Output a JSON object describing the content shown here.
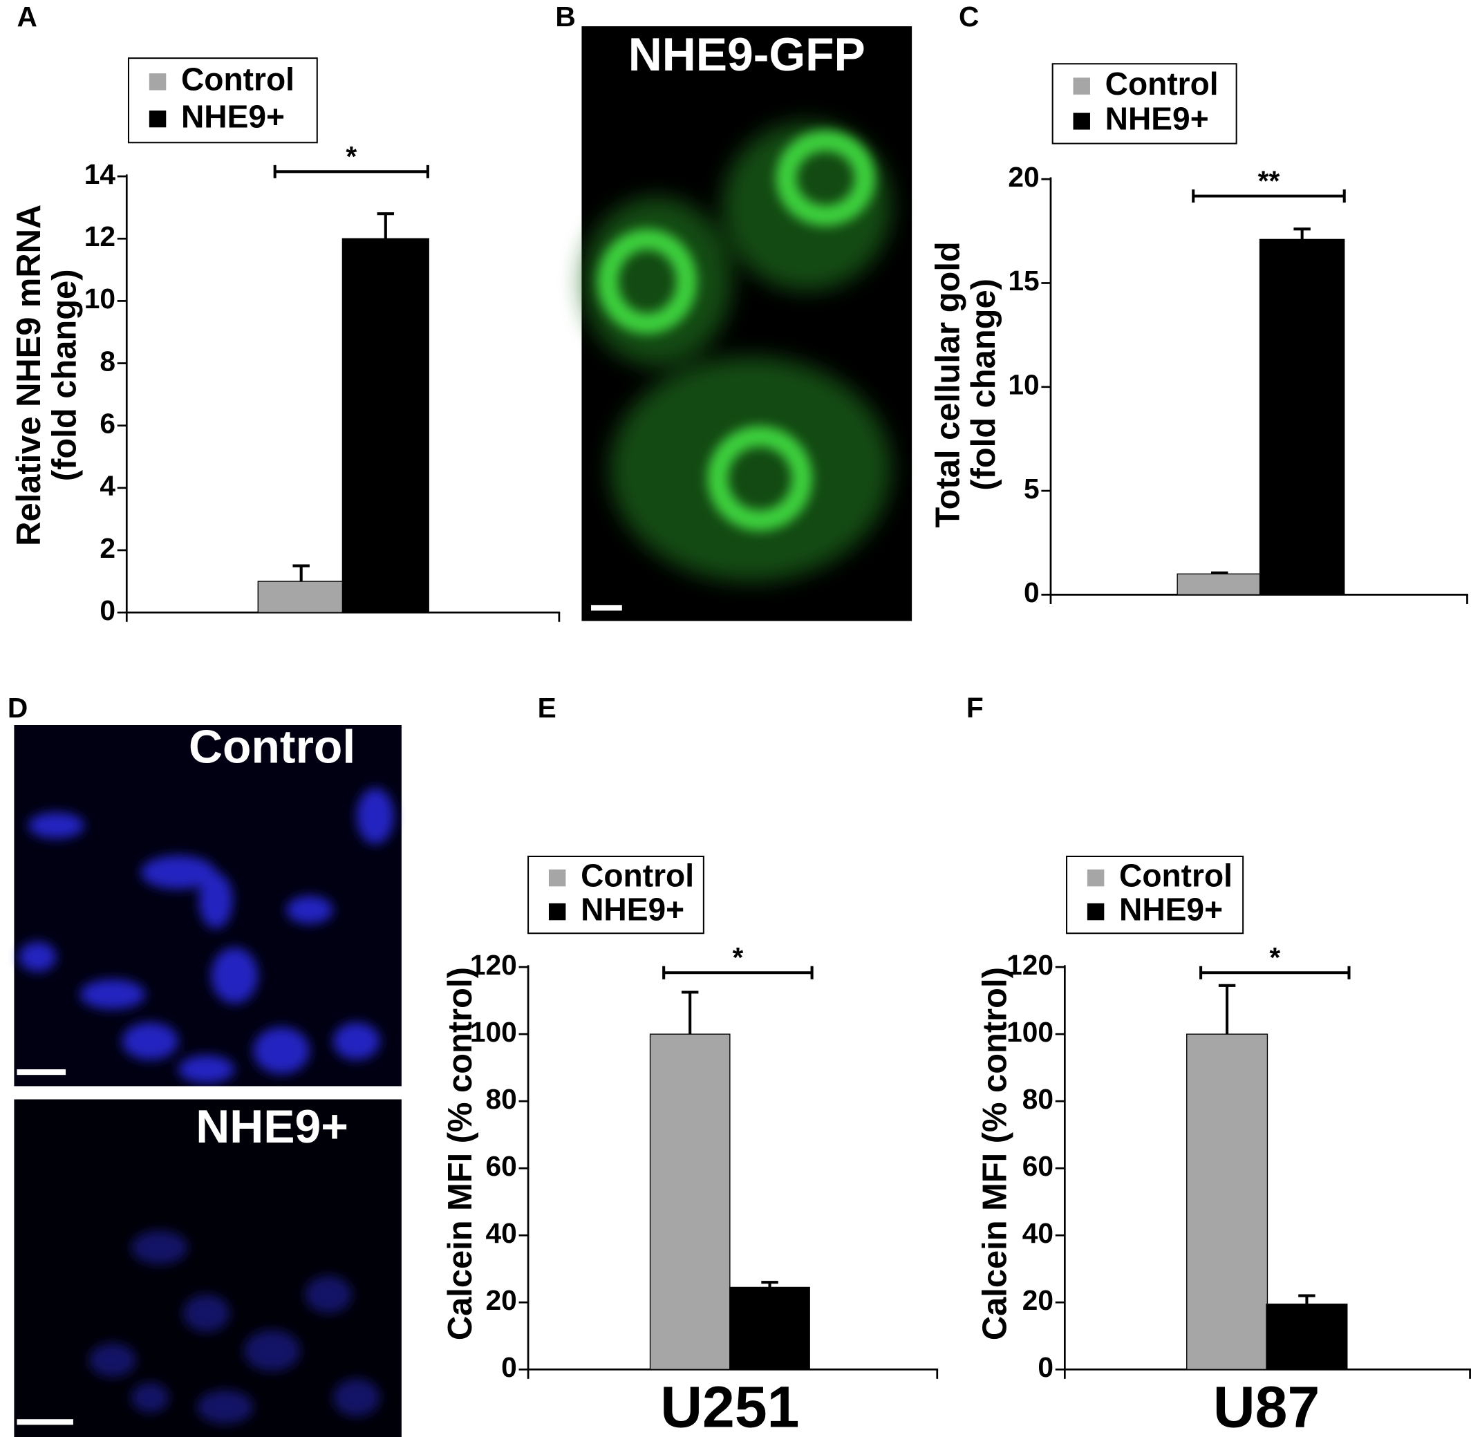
{
  "panel_labels": [
    "A",
    "B",
    "C",
    "D",
    "E",
    "F"
  ],
  "image_labels": [
    "NHE9-GFP",
    "Control",
    "NHE9+"
  ],
  "chart_data": [
    {
      "type": "bar",
      "ylabel": [
        "Relative NHE9 mRNA",
        "(fold change)"
      ],
      "ylim": [
        0,
        14
      ],
      "yticks": [
        0,
        2,
        4,
        6,
        8,
        10,
        12,
        14
      ],
      "significance": "*",
      "series": [
        {
          "name": "Control",
          "color": "#a6a6a6",
          "values": [
            1
          ],
          "errors": [
            0.5
          ]
        },
        {
          "name": "NHE9+",
          "color": "#000000",
          "values": [
            12
          ],
          "errors": [
            0.8
          ]
        }
      ]
    },
    {
      "type": "bar",
      "ylabel": [
        "Total cellular gold",
        "(fold change)"
      ],
      "ylim": [
        0,
        20
      ],
      "yticks": [
        0,
        5,
        10,
        15,
        20
      ],
      "significance": "**",
      "series": [
        {
          "name": "Control",
          "color": "#a6a6a6",
          "values": [
            1
          ],
          "errors": [
            0.05
          ]
        },
        {
          "name": "NHE9+",
          "color": "#000000",
          "values": [
            17.1
          ],
          "errors": [
            0.5
          ]
        }
      ]
    },
    {
      "type": "bar",
      "ylabel": "Calcein MFI (% control)",
      "xlabel": "U251",
      "ylim": [
        0,
        120
      ],
      "yticks": [
        0,
        20,
        40,
        60,
        80,
        100,
        120
      ],
      "significance": "*",
      "series": [
        {
          "name": "Control",
          "color": "#a6a6a6",
          "values": [
            100
          ],
          "errors": [
            12.5
          ]
        },
        {
          "name": "NHE9+",
          "color": "#000000",
          "values": [
            24.5
          ],
          "errors": [
            1.5
          ]
        }
      ]
    },
    {
      "type": "bar",
      "ylabel": "Calcein MFI (% control)",
      "xlabel": "U87",
      "ylim": [
        0,
        120
      ],
      "yticks": [
        0,
        20,
        40,
        60,
        80,
        100,
        120
      ],
      "significance": "*",
      "series": [
        {
          "name": "Control",
          "color": "#a6a6a6",
          "values": [
            100
          ],
          "errors": [
            14.5
          ]
        },
        {
          "name": "NHE9+",
          "color": "#000000",
          "values": [
            19.5
          ],
          "errors": [
            2.5
          ]
        }
      ]
    }
  ]
}
